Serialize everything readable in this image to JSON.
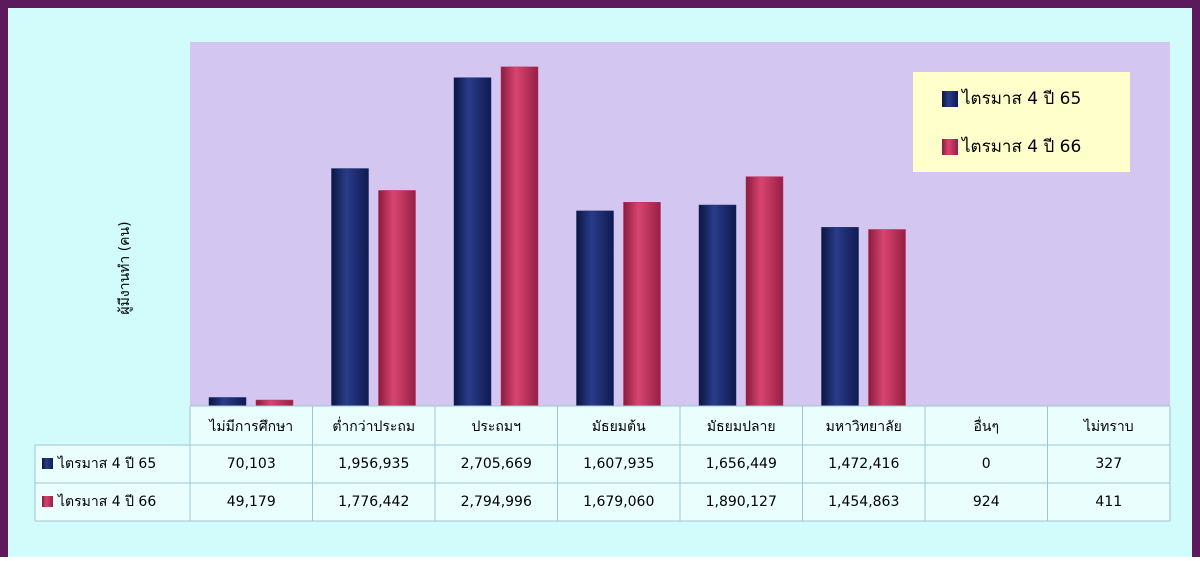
{
  "chart_data": {
    "type": "bar",
    "y_label": "ผู้มีงานทำ (คน)",
    "categories": [
      "ไม่มีการศึกษา",
      "ต่ำกว่าประถม",
      "ประถมฯ",
      "มัธยมต้น",
      "มัธยมปลาย",
      "มหาวิทยาลัย",
      "อื่นๆ",
      "ไม่ทราบ"
    ],
    "series": [
      {
        "name": "ไตรมาส 4 ปี 65",
        "color": "#1b2a6b",
        "values": [
          70103,
          1956935,
          2705669,
          1607935,
          1656449,
          1472416,
          0,
          327
        ],
        "value_labels": [
          "70,103",
          "1,956,935",
          "2,705,669",
          "1,607,935",
          "1,656,449",
          "1,472,416",
          "0",
          "327"
        ]
      },
      {
        "name": "ไตรมาส 4 ปี 66",
        "color": "#c2305c",
        "values": [
          49179,
          1776442,
          2794996,
          1679060,
          1890127,
          1454863,
          924,
          411
        ],
        "value_labels": [
          "49,179",
          "1,776,442",
          "2,794,996",
          "1,679,060",
          "1,890,127",
          "1,454,863",
          "924",
          "411"
        ]
      }
    ],
    "ylim": [
      0,
      3000000
    ],
    "legend": "upper right"
  }
}
